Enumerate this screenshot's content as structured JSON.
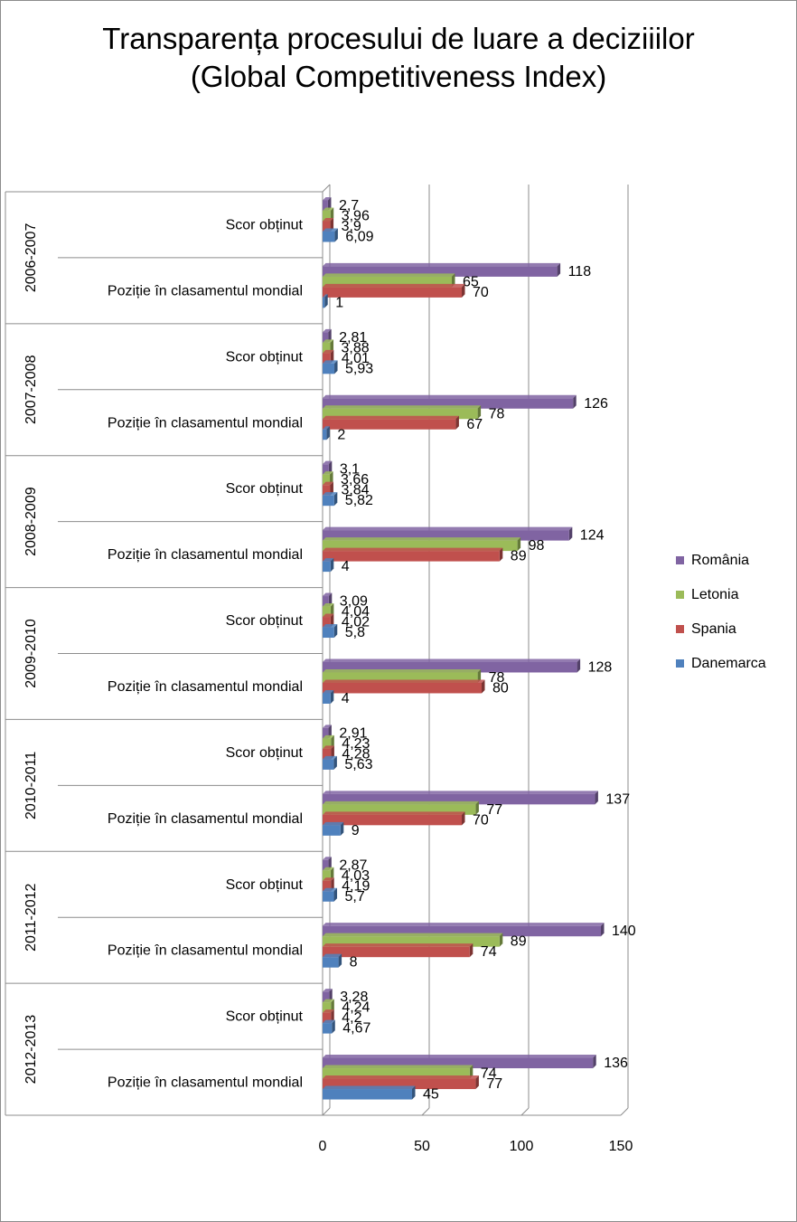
{
  "chart_data": {
    "type": "bar",
    "orientation": "horizontal",
    "title": "Transparența procesului de luare a deciziiilor\n(Global Competitiveness Index)",
    "xlim": [
      0,
      150
    ],
    "x_ticks": [
      "0",
      "50",
      "100",
      "150"
    ],
    "grid": true,
    "legend_position": "right",
    "series_names": [
      "România",
      "Letonia",
      "Spania",
      "Danemarca"
    ],
    "series_colors": [
      "#8064A2",
      "#9BBB59",
      "#C0504D",
      "#4F81BD"
    ],
    "groups": [
      {
        "period": "2006-2007",
        "rows": [
          {
            "label": "Scor obținut",
            "values": [
              "2,7",
              "3,96",
              "3,9",
              "6,09"
            ]
          },
          {
            "label": "Poziție în clasamentul mondial",
            "values": [
              "118",
              "65",
              "70",
              "1"
            ]
          }
        ]
      },
      {
        "period": "2007-2008",
        "rows": [
          {
            "label": "Scor obținut",
            "values": [
              "2,81",
              "3,88",
              "4,01",
              "5,93"
            ]
          },
          {
            "label": "Poziție în clasamentul mondial",
            "values": [
              "126",
              "78",
              "67",
              "2"
            ]
          }
        ]
      },
      {
        "period": "2008-2009",
        "rows": [
          {
            "label": "Scor obținut",
            "values": [
              "3,1",
              "3,66",
              "3,84",
              "5,82"
            ]
          },
          {
            "label": "Poziție în clasamentul mondial",
            "values": [
              "124",
              "98",
              "89",
              "4"
            ]
          }
        ]
      },
      {
        "period": "2009-2010",
        "rows": [
          {
            "label": "Scor obținut",
            "values": [
              "3,09",
              "4,04",
              "4,02",
              "5,8"
            ]
          },
          {
            "label": "Poziție în clasamentul mondial",
            "values": [
              "128",
              "78",
              "80",
              "4"
            ]
          }
        ]
      },
      {
        "period": "2010-2011",
        "rows": [
          {
            "label": "Scor obținut",
            "values": [
              "2,91",
              "4,23",
              "4,28",
              "5,63"
            ]
          },
          {
            "label": "Poziție în clasamentul mondial",
            "values": [
              "137",
              "77",
              "70",
              "9"
            ]
          }
        ]
      },
      {
        "period": "2011-2012",
        "rows": [
          {
            "label": "Scor obținut",
            "values": [
              "2,87",
              "4,03",
              "4,19",
              "5,7"
            ]
          },
          {
            "label": "Poziție în clasamentul mondial",
            "values": [
              "140",
              "89",
              "74",
              "8"
            ]
          }
        ]
      },
      {
        "period": "2012-2013",
        "rows": [
          {
            "label": "Scor obținut",
            "values": [
              "3,28",
              "4,24",
              "4,2",
              "4,67"
            ]
          },
          {
            "label": "Poziție în clasamentul mondial",
            "values": [
              "136",
              "74",
              "77",
              "45"
            ]
          }
        ]
      }
    ]
  }
}
